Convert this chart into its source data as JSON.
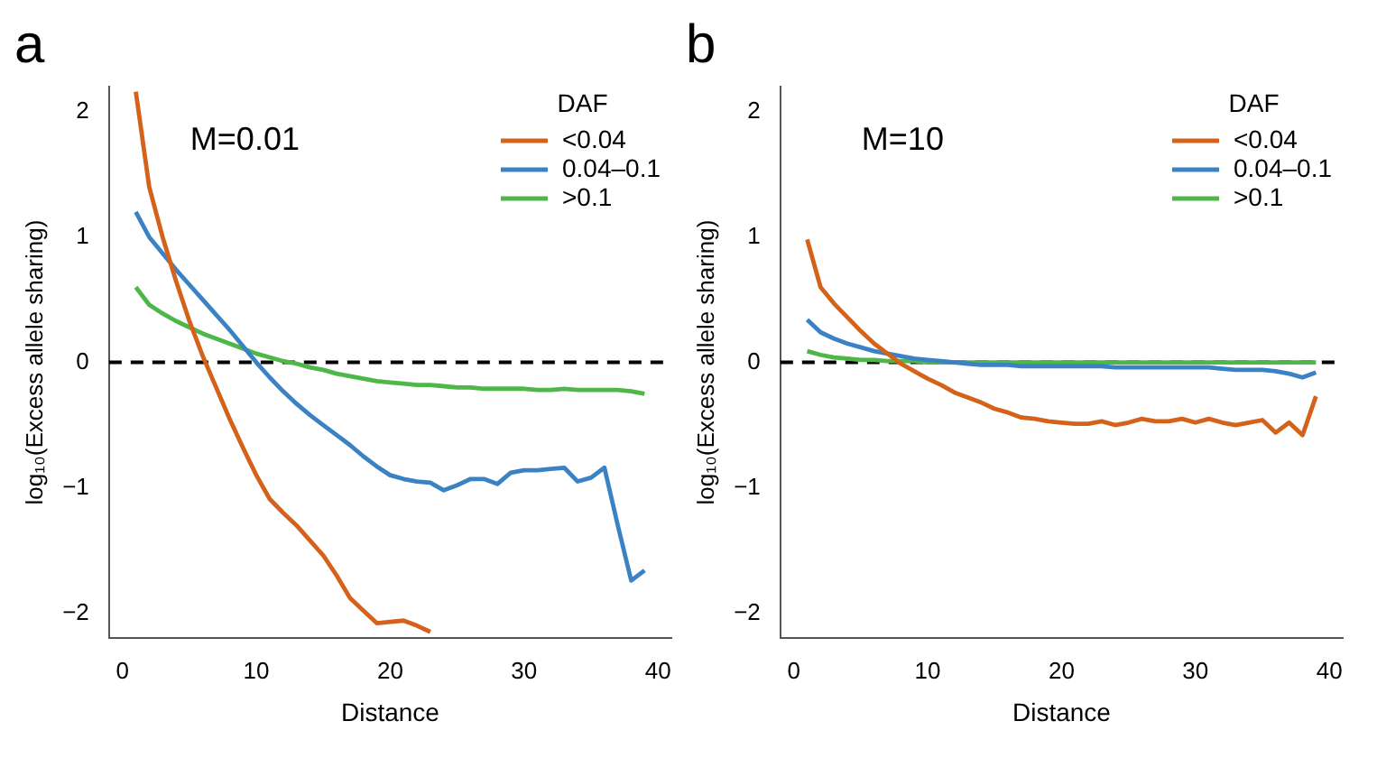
{
  "chart_data": [
    {
      "type": "line",
      "title": "a",
      "xlabel": "Distance",
      "ylabel": "log₁₀(Excess allele sharing)",
      "legend_title": "DAF",
      "legend": "top right",
      "annotations": [
        "M=0.01"
      ],
      "x": [
        1,
        2,
        3,
        4,
        5,
        6,
        7,
        8,
        9,
        10,
        11,
        12,
        13,
        14,
        15,
        16,
        17,
        18,
        19,
        20,
        21,
        22,
        23,
        24,
        25,
        26,
        27,
        28,
        29,
        30,
        31,
        32,
        33,
        34,
        35,
        36,
        37,
        38,
        39
      ],
      "xlim": [
        -1,
        41
      ],
      "xticks": [
        0,
        10,
        20,
        30,
        40
      ],
      "ylim": [
        -2.2,
        2.2
      ],
      "yticks": [
        -2,
        -1,
        0,
        1,
        2
      ],
      "ref_lines": [
        {
          "axis": "y",
          "value": 0,
          "color": "#000000",
          "line_style": "dashed"
        }
      ],
      "series": [
        {
          "name": "<0.04",
          "color": "#d4621a",
          "values": [
            2.16,
            1.4,
            1.0,
            0.65,
            0.33,
            0.05,
            -0.2,
            -0.45,
            -0.68,
            -0.9,
            -1.09,
            -1.2,
            -1.3,
            -1.42,
            -1.54,
            -1.7,
            -1.88,
            -1.98,
            -2.08,
            -2.07,
            -2.06,
            -2.1,
            -2.15,
            null,
            null,
            null,
            null,
            null,
            null,
            null,
            null,
            null,
            null,
            null,
            null,
            null,
            null,
            null,
            null
          ]
        },
        {
          "name": "0.04–0.1",
          "color": "#3b82c4",
          "values": [
            1.2,
            1.0,
            0.87,
            0.74,
            0.62,
            0.5,
            0.38,
            0.26,
            0.13,
            0.0,
            -0.12,
            -0.23,
            -0.33,
            -0.42,
            -0.5,
            -0.58,
            -0.66,
            -0.75,
            -0.83,
            -0.9,
            -0.93,
            -0.95,
            -0.96,
            -1.02,
            -0.98,
            -0.93,
            -0.93,
            -0.97,
            -0.88,
            -0.86,
            -0.86,
            -0.85,
            -0.84,
            -0.95,
            -0.92,
            -0.84,
            -1.3,
            -1.74,
            -1.66
          ]
        },
        {
          "name": ">0.1",
          "color": "#4db848",
          "values": [
            0.6,
            0.46,
            0.39,
            0.33,
            0.28,
            0.23,
            0.19,
            0.15,
            0.11,
            0.07,
            0.04,
            0.01,
            -0.01,
            -0.04,
            -0.06,
            -0.09,
            -0.11,
            -0.13,
            -0.15,
            -0.16,
            -0.17,
            -0.18,
            -0.18,
            -0.19,
            -0.2,
            -0.2,
            -0.21,
            -0.21,
            -0.21,
            -0.21,
            -0.22,
            -0.22,
            -0.21,
            -0.22,
            -0.22,
            -0.22,
            -0.22,
            -0.23,
            -0.25
          ]
        }
      ]
    },
    {
      "type": "line",
      "title": "b",
      "xlabel": "Distance",
      "ylabel": "log₁₀(Excess allele sharing)",
      "legend_title": "DAF",
      "legend": "top right",
      "annotations": [
        "M=10"
      ],
      "x": [
        1,
        2,
        3,
        4,
        5,
        6,
        7,
        8,
        9,
        10,
        11,
        12,
        13,
        14,
        15,
        16,
        17,
        18,
        19,
        20,
        21,
        22,
        23,
        24,
        25,
        26,
        27,
        28,
        29,
        30,
        31,
        32,
        33,
        34,
        35,
        36,
        37,
        38,
        39
      ],
      "xlim": [
        -1,
        41
      ],
      "xticks": [
        0,
        10,
        20,
        30,
        40
      ],
      "ylim": [
        -2.2,
        2.2
      ],
      "yticks": [
        -2,
        -1,
        0,
        1,
        2
      ],
      "ref_lines": [
        {
          "axis": "y",
          "value": 0,
          "color": "#000000",
          "line_style": "dashed"
        }
      ],
      "series": [
        {
          "name": "<0.04",
          "color": "#d4621a",
          "values": [
            0.98,
            0.6,
            0.47,
            0.36,
            0.25,
            0.15,
            0.07,
            -0.01,
            -0.07,
            -0.13,
            -0.18,
            -0.24,
            -0.28,
            -0.32,
            -0.37,
            -0.4,
            -0.44,
            -0.45,
            -0.47,
            -0.48,
            -0.49,
            -0.49,
            -0.47,
            -0.5,
            -0.48,
            -0.45,
            -0.47,
            -0.47,
            -0.45,
            -0.48,
            -0.45,
            -0.48,
            -0.5,
            -0.48,
            -0.46,
            -0.56,
            -0.48,
            -0.58,
            -0.27
          ]
        },
        {
          "name": "0.04–0.1",
          "color": "#3b82c4",
          "values": [
            0.34,
            0.24,
            0.19,
            0.15,
            0.12,
            0.09,
            0.07,
            0.05,
            0.03,
            0.02,
            0.01,
            0.0,
            -0.01,
            -0.02,
            -0.02,
            -0.02,
            -0.03,
            -0.03,
            -0.03,
            -0.03,
            -0.03,
            -0.03,
            -0.03,
            -0.04,
            -0.04,
            -0.04,
            -0.04,
            -0.04,
            -0.04,
            -0.04,
            -0.04,
            -0.05,
            -0.06,
            -0.06,
            -0.06,
            -0.07,
            -0.09,
            -0.12,
            -0.08
          ]
        },
        {
          "name": ">0.1",
          "color": "#4db848",
          "values": [
            0.09,
            0.06,
            0.04,
            0.03,
            0.02,
            0.02,
            0.01,
            0.01,
            0.01,
            0.0,
            0.0,
            0.0,
            0.0,
            0.0,
            0.0,
            0.0,
            0.0,
            0.0,
            0.0,
            0.0,
            0.0,
            0.0,
            0.0,
            0.0,
            0.0,
            0.0,
            0.0,
            0.0,
            0.0,
            0.0,
            0.0,
            0.0,
            0.0,
            0.0,
            0.0,
            0.0,
            0.0,
            0.0,
            0.0
          ]
        }
      ]
    }
  ]
}
